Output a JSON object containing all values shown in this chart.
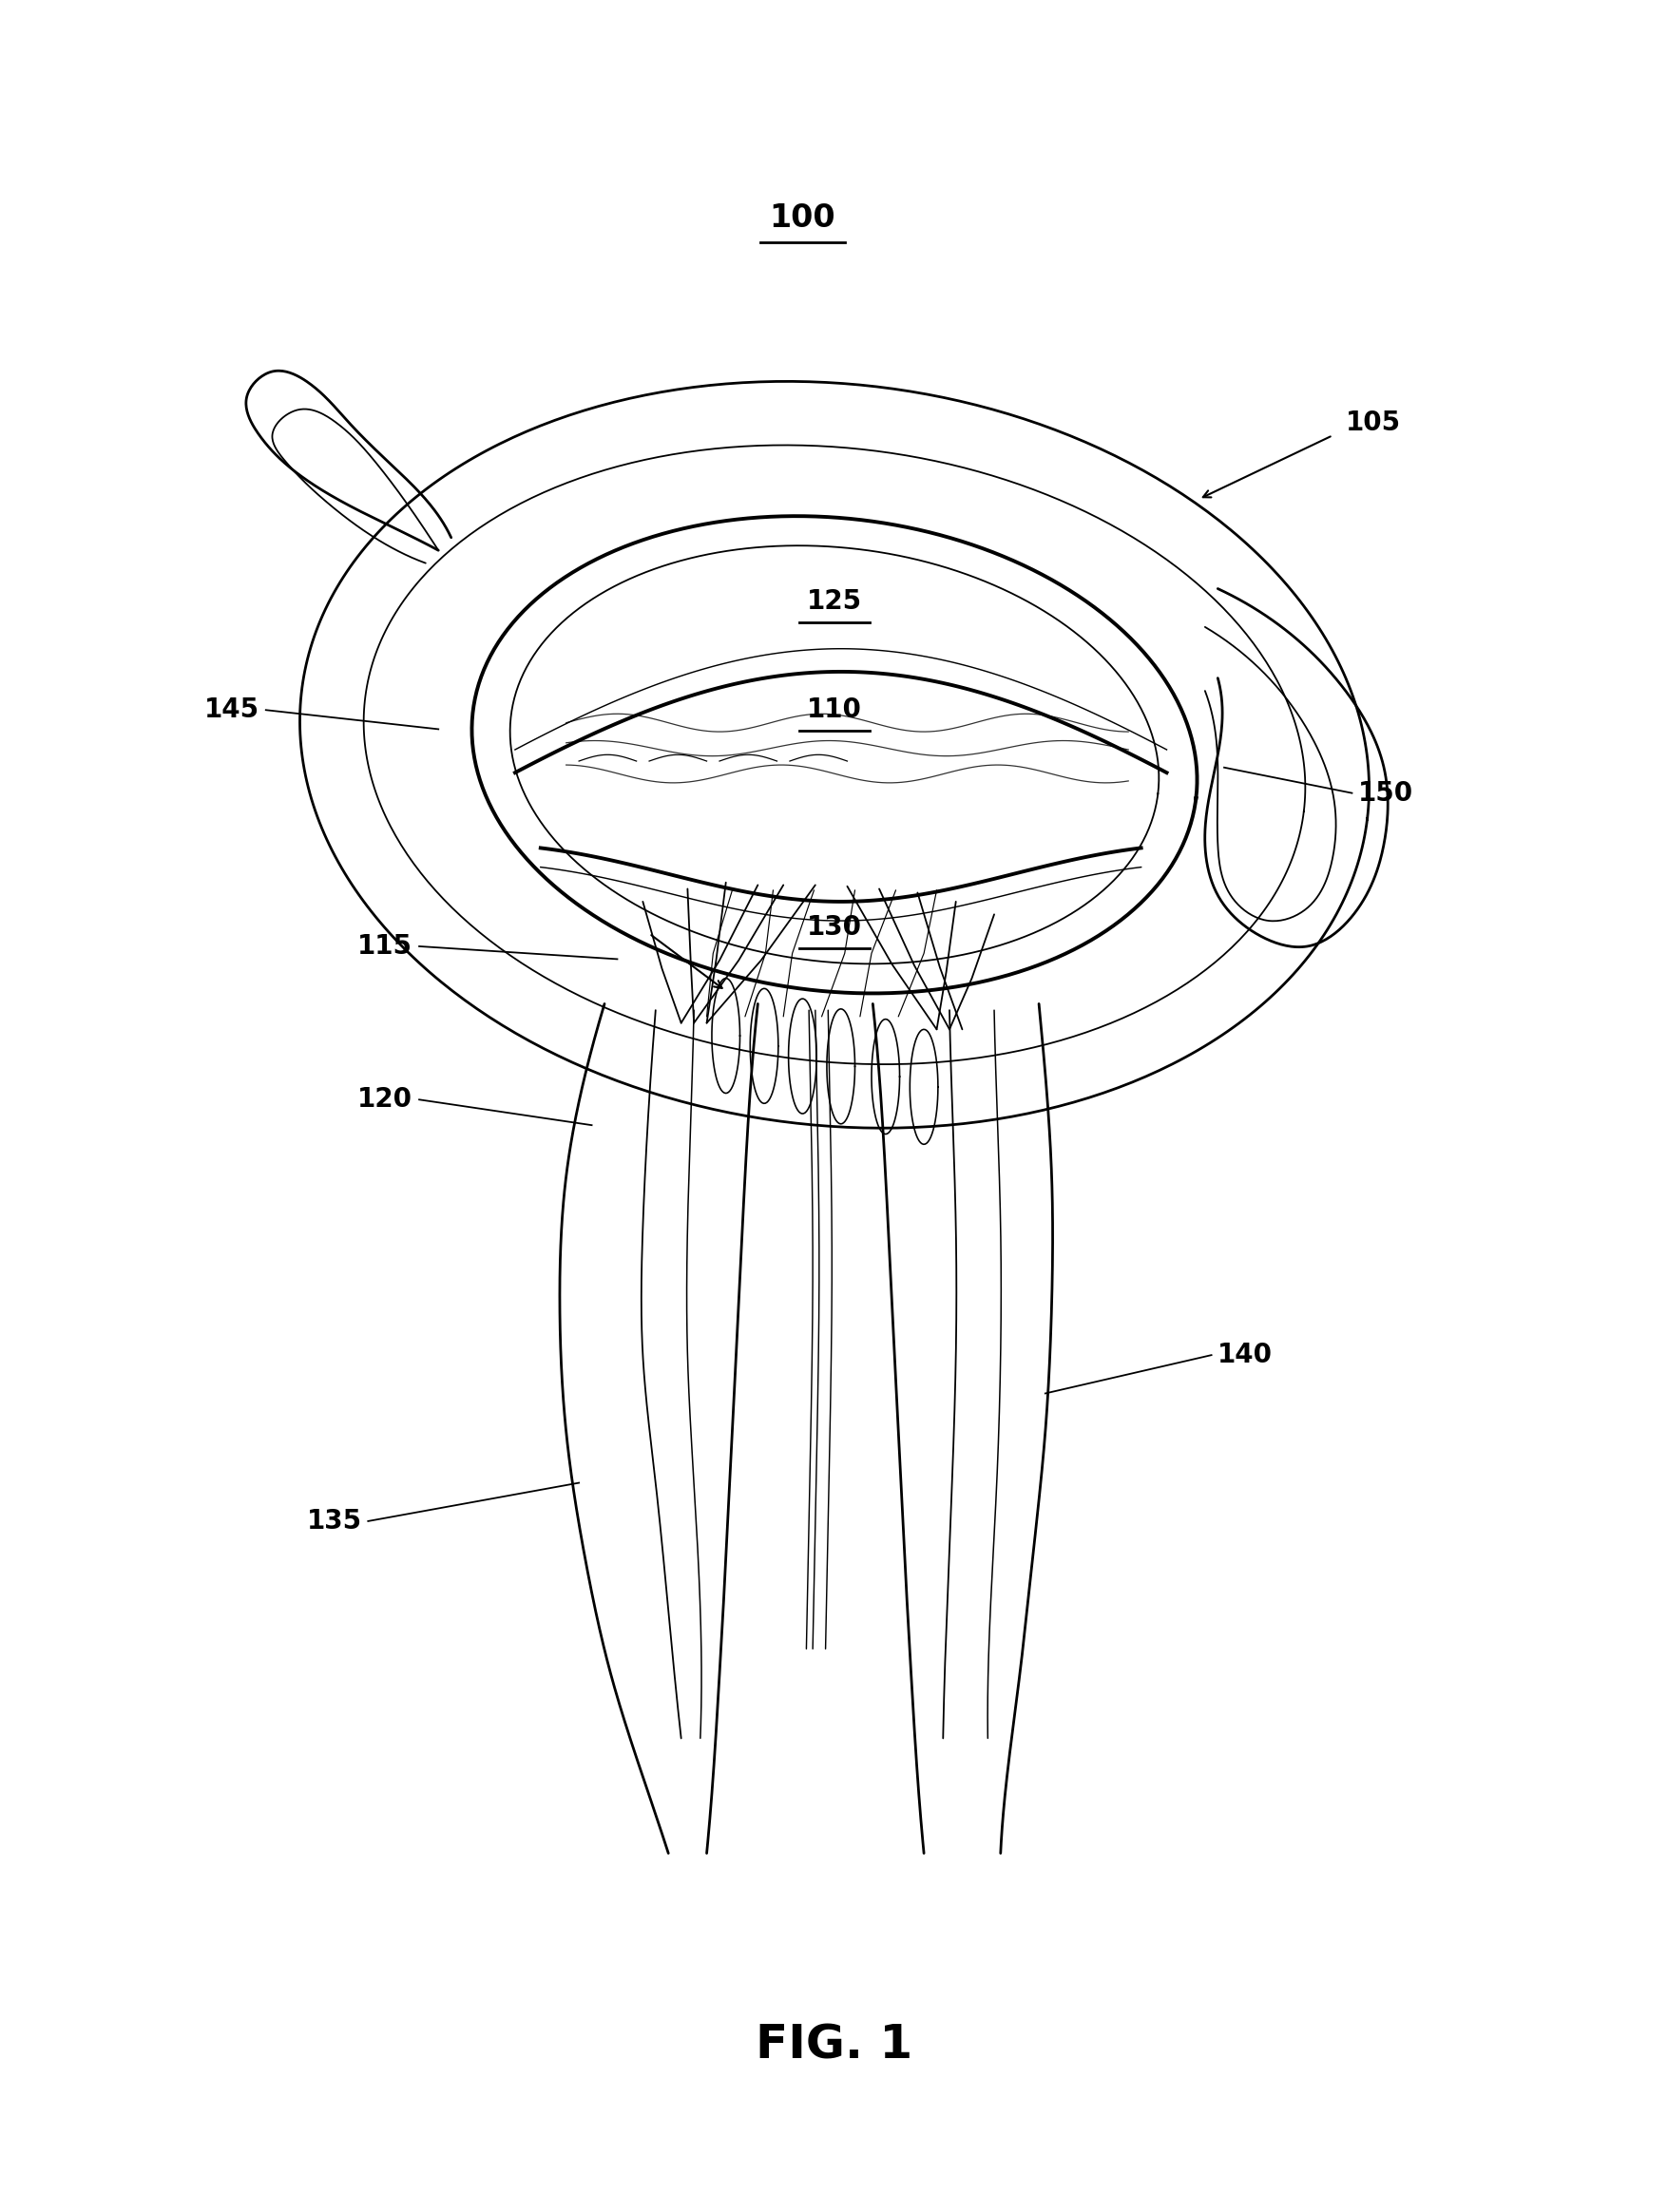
{
  "title": "FIG. 1",
  "title_fontsize": 36,
  "background_color": "#ffffff",
  "line_color": "#000000",
  "label_100": "100",
  "label_105": "105",
  "label_110": "110",
  "label_115": "115",
  "label_120": "120",
  "label_125": "125",
  "label_130": "130",
  "label_135": "135",
  "label_140": "140",
  "label_145": "145",
  "label_150": "150",
  "label_fontsize": 20,
  "fig_width": 17.56,
  "fig_height": 23.28,
  "xlim": [
    -1,
    12
  ],
  "ylim": [
    -2.5,
    14
  ]
}
